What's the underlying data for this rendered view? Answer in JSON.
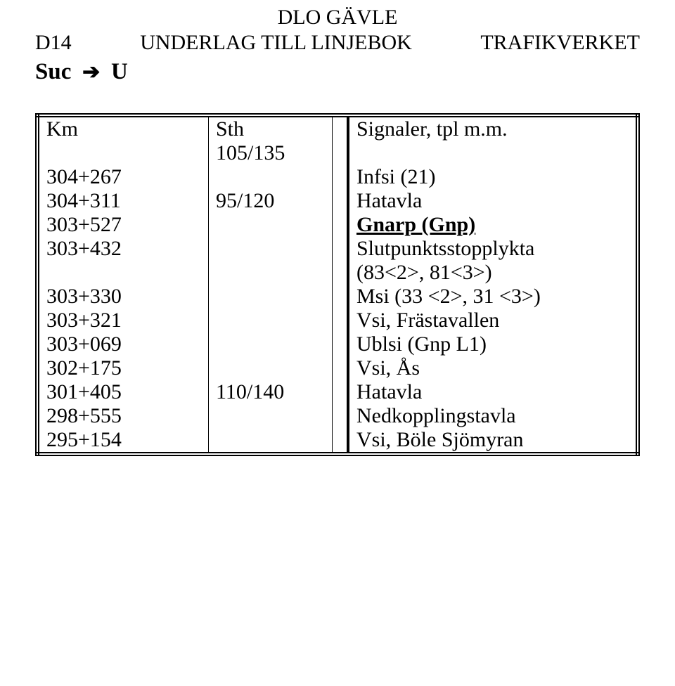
{
  "header": {
    "region": "DLO GÄVLE",
    "left": "D14",
    "center": "UNDERLAG TILL LINJEBOK",
    "right": "TRAFIKVERKET",
    "direction_from": "Suc",
    "direction_to": "U"
  },
  "table": {
    "col_km": "Km",
    "col_sth": "Sth",
    "col_sig": "Signaler, tpl m.m.",
    "rows": [
      {
        "km": "",
        "sth": "105/135",
        "sig": ""
      },
      {
        "km": "304+267",
        "sth": "",
        "sig": "Infsi (21)"
      },
      {
        "km": "304+311",
        "sth": "95/120",
        "sig": "Hatavla"
      },
      {
        "km": "303+527",
        "sth": "",
        "sig": "Gnarp (Gnp)",
        "bold_underline": true
      },
      {
        "km": "303+432",
        "sth": "",
        "sig": "Slutpunktsstopplykta",
        "sig2": "(83<2>, 81<3>)"
      },
      {
        "km": "303+330",
        "sth": "",
        "sig": "Msi (33 <2>, 31 <3>)"
      },
      {
        "km": "303+321",
        "sth": "",
        "sig": "Vsi, Frästavallen"
      },
      {
        "km": "303+069",
        "sth": "",
        "sig": "Ublsi (Gnp L1)"
      },
      {
        "km": "302+175",
        "sth": "",
        "sig": "Vsi, Ås"
      },
      {
        "km": "301+405",
        "sth": "110/140",
        "sig": "Hatavla"
      },
      {
        "km": "298+555",
        "sth": "",
        "sig": "Nedkopplingstavla"
      },
      {
        "km": "295+154",
        "sth": "",
        "sig": "Vsi, Böle Sjömyran"
      }
    ]
  }
}
